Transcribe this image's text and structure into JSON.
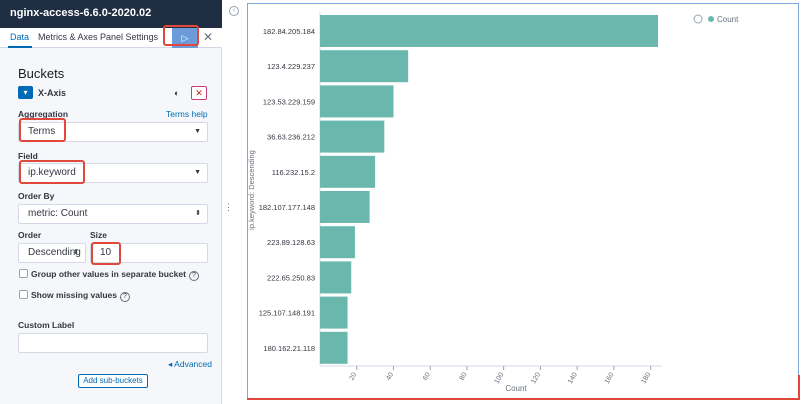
{
  "window": {
    "title": "nginx-access-6.6.0-2020.02"
  },
  "tabs": [
    {
      "label": "Data"
    },
    {
      "label": "Metrics & Axes"
    },
    {
      "label": "Panel Settings"
    }
  ],
  "toolbar": {
    "apply_icon": "play-icon",
    "close_icon": "close-icon"
  },
  "buckets": {
    "title": "Buckets",
    "axis_label": "X-Axis",
    "aggregation_label": "Aggregation",
    "terms_help": "Terms help",
    "aggregation_value": "Terms",
    "field_label": "Field",
    "field_value": "ip.keyword",
    "order_by_label": "Order By",
    "order_by_value": "metric: Count",
    "order_label": "Order",
    "order_value": "Descending",
    "size_label": "Size",
    "size_value": "10",
    "group_other_label": "Group other values in separate bucket",
    "show_missing_label": "Show missing values",
    "custom_label_title": "Custom Label",
    "custom_label_value": "",
    "advanced_link": "Advanced",
    "add_sub_button": "Add sub-buckets"
  },
  "colors": {
    "bar": "#6ab8ad",
    "accent": "#006bb4",
    "highlight": "#e0483b"
  },
  "chart_data": {
    "type": "bar",
    "orientation": "horizontal",
    "categories": [
      "182.84.205.184",
      "123.4.229.237",
      "123.53.229.159",
      "36.63.236.212",
      "116.232.15.2",
      "182.107.177.148",
      "223.89.128.63",
      "222.65.250.83",
      "125.107.148.191",
      "180.162.21.118"
    ],
    "values": [
      184,
      48,
      40,
      35,
      30,
      27,
      19,
      17,
      15,
      15
    ],
    "xlabel": "Count",
    "ylabel": "ip.keyword: Descending",
    "xlim": [
      0,
      184
    ],
    "xticks": [
      20,
      40,
      60,
      80,
      100,
      120,
      140,
      160,
      180
    ],
    "legend": {
      "position": "top-right",
      "entries": [
        "Count"
      ]
    }
  }
}
